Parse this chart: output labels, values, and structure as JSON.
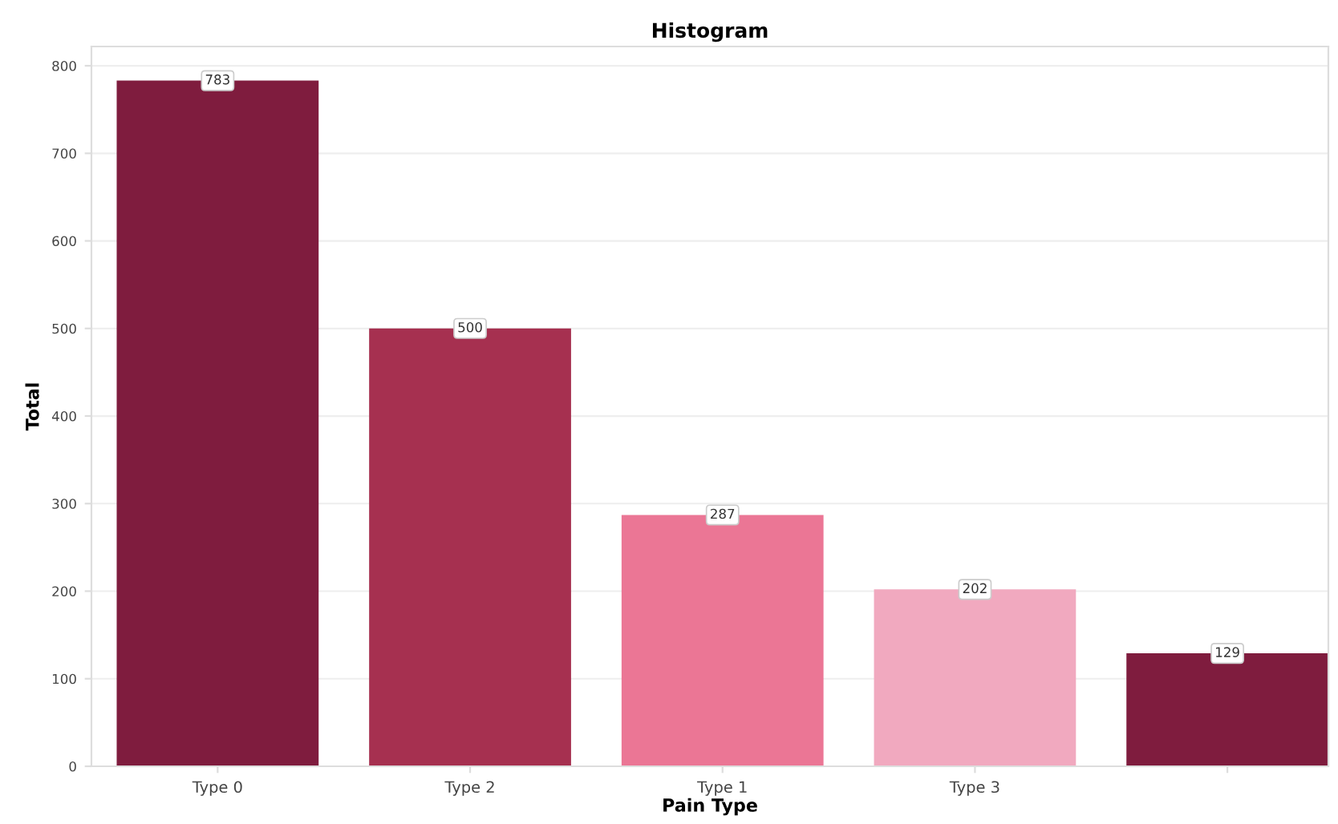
{
  "chart_data": {
    "type": "bar",
    "title": "Histogram",
    "xlabel": "Pain Type",
    "ylabel": "Total",
    "categories": [
      "Type 0",
      "Type 2",
      "Type 1",
      "Type 3",
      null
    ],
    "values": [
      783,
      500,
      287,
      202,
      129
    ],
    "colors": [
      "#7f1c3e",
      "#a63050",
      "#eb7695",
      "#f1a9bf",
      "#7f1c3e"
    ],
    "ylim": [
      0,
      822
    ],
    "yticks": [
      0,
      100,
      200,
      300,
      400,
      500,
      600,
      700,
      800
    ],
    "grid": "y",
    "data_labels": true
  }
}
